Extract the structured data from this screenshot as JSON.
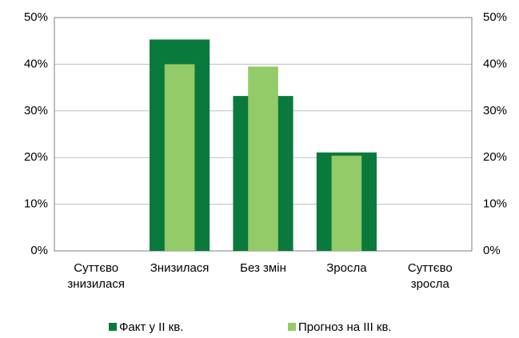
{
  "chart_data": {
    "type": "bar",
    "categories": [
      "Суттєво знизилася",
      "Знизилася",
      "Без змін",
      "Зросла",
      "Суттєво зросла"
    ],
    "series": [
      {
        "name": "Факт у II кв.",
        "color": "#0a7a3c",
        "values": [
          0,
          45.3,
          33.2,
          21.1,
          0
        ]
      },
      {
        "name": "Прогноз на III кв.",
        "color": "#92cb67",
        "values": [
          0,
          40,
          39.5,
          20.4,
          0
        ]
      }
    ],
    "ylim": [
      0,
      50
    ],
    "yticks": [
      {
        "value": 0,
        "label": "0%"
      },
      {
        "value": 10,
        "label": "10%"
      },
      {
        "value": 20,
        "label": "20%"
      },
      {
        "value": 30,
        "label": "30%"
      },
      {
        "value": 40,
        "label": "40%"
      },
      {
        "value": 50,
        "label": "50%"
      }
    ],
    "y2lim": [
      0,
      50
    ],
    "y2ticks": [
      {
        "value": 0,
        "label": "0%"
      },
      {
        "value": 10,
        "label": "10%"
      },
      {
        "value": 20,
        "label": "20%"
      },
      {
        "value": 30,
        "label": "30%"
      },
      {
        "value": 40,
        "label": "40%"
      },
      {
        "value": 50,
        "label": "50%"
      }
    ],
    "grid": true,
    "legend": "bottom"
  }
}
